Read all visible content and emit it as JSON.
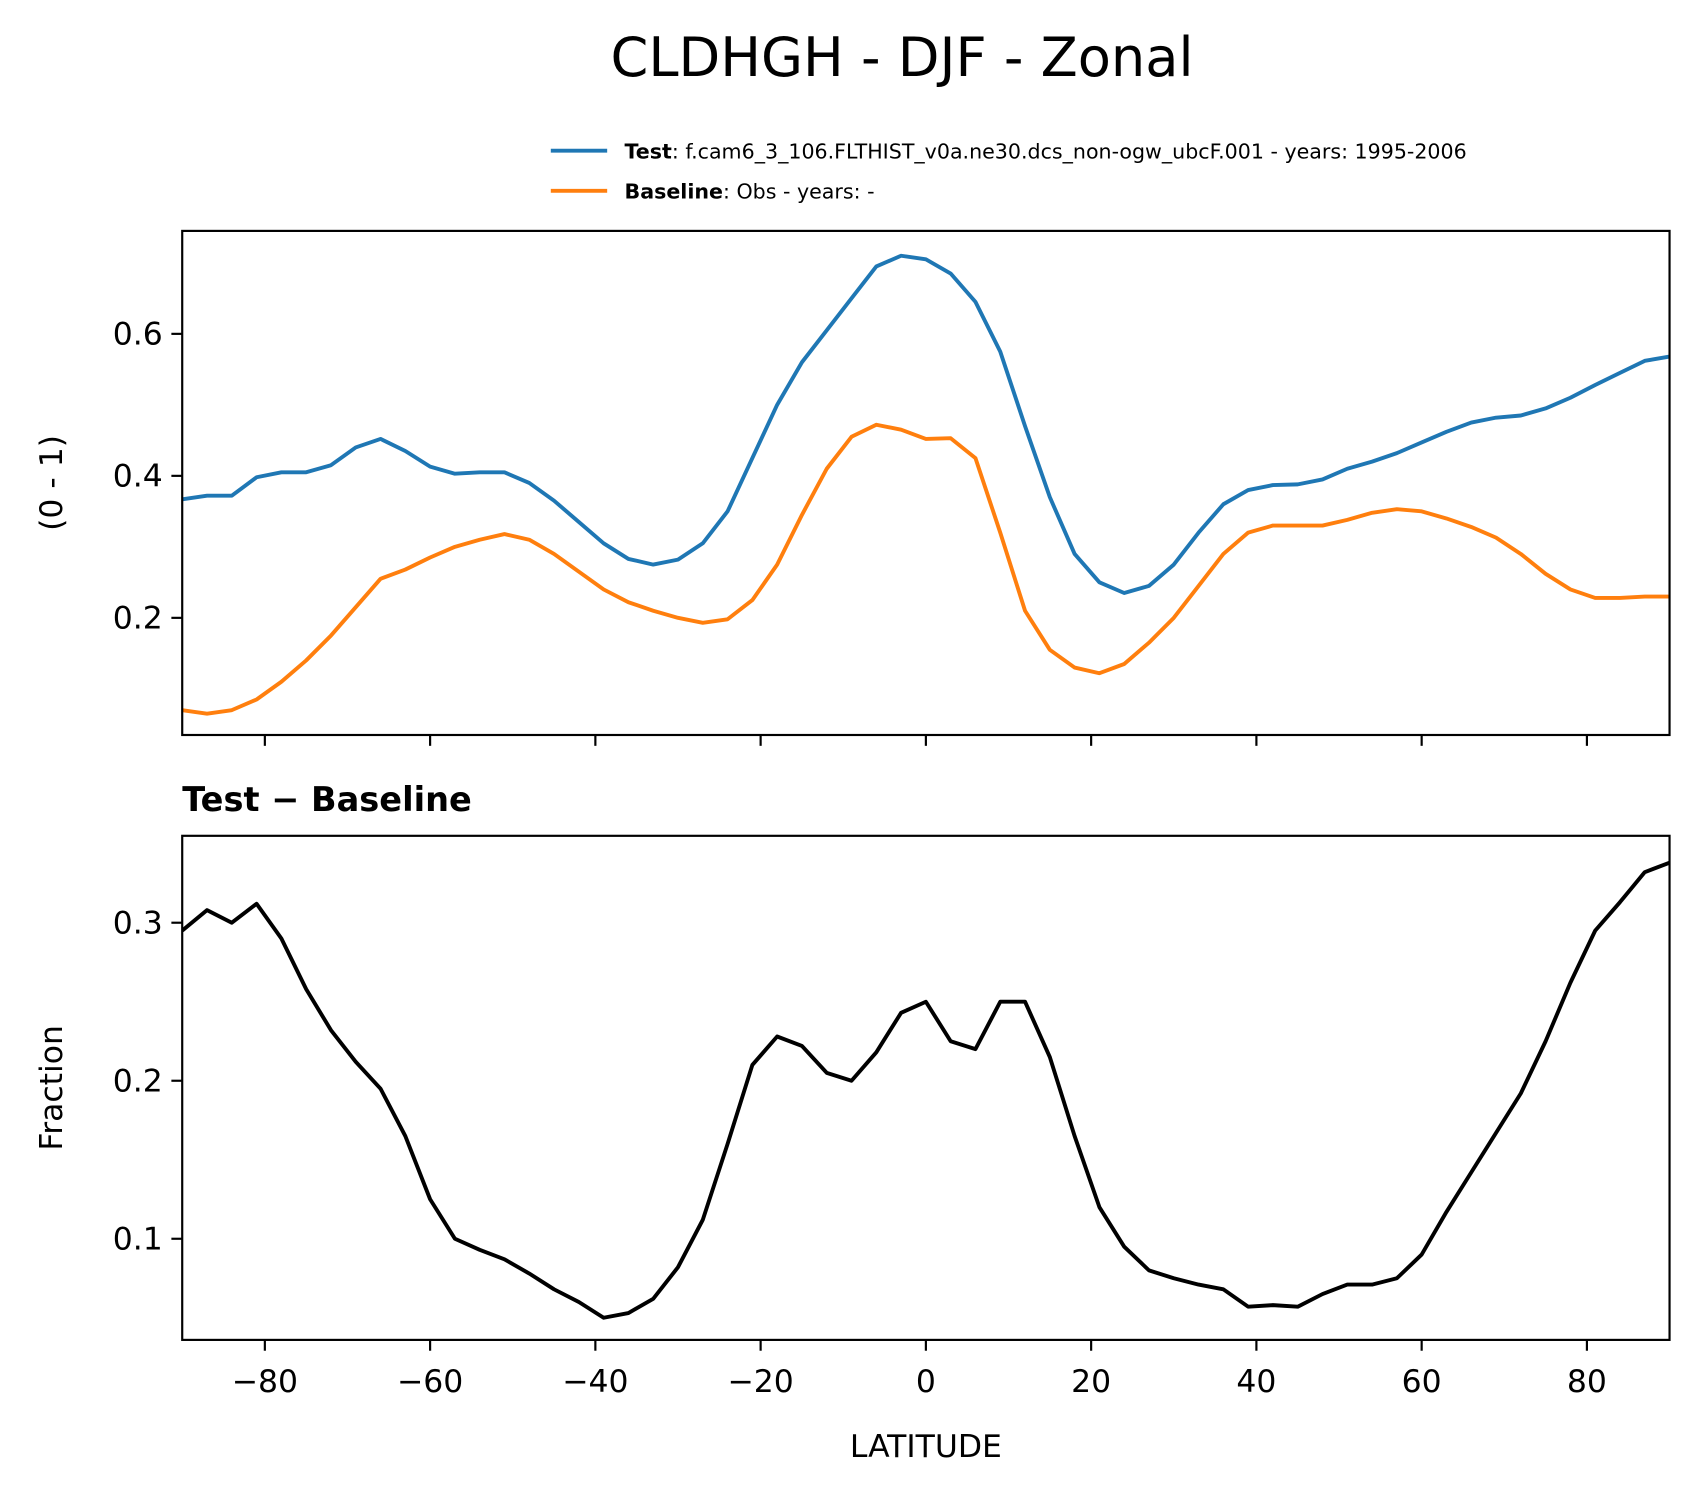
{
  "title": "CLDHGH - DJF - Zonal",
  "chart_data": [
    {
      "type": "line",
      "ylabel": "(0 - 1)",
      "x": [
        -90,
        -87,
        -84,
        -81,
        -78,
        -75,
        -72,
        -69,
        -66,
        -63,
        -60,
        -57,
        -54,
        -51,
        -48,
        -45,
        -42,
        -39,
        -36,
        -33,
        -30,
        -27,
        -24,
        -21,
        -18,
        -15,
        -12,
        -9,
        -6,
        -3,
        0,
        3,
        6,
        9,
        12,
        15,
        18,
        21,
        24,
        27,
        30,
        33,
        36,
        39,
        42,
        45,
        48,
        51,
        54,
        57,
        60,
        63,
        66,
        69,
        72,
        75,
        78,
        81,
        84,
        87,
        90
      ],
      "series": [
        {
          "name": "Test",
          "description": ": f.cam6_3_106.FLTHIST_v0a.ne30.dcs_non-ogw_ubcF.001 - years: 1995-2006",
          "color": "#1f77b4",
          "values": [
            0.367,
            0.372,
            0.372,
            0.398,
            0.405,
            0.405,
            0.415,
            0.44,
            0.452,
            0.435,
            0.413,
            0.403,
            0.405,
            0.405,
            0.39,
            0.365,
            0.335,
            0.305,
            0.283,
            0.275,
            0.282,
            0.305,
            0.35,
            0.425,
            0.5,
            0.56,
            0.605,
            0.65,
            0.695,
            0.71,
            0.705,
            0.685,
            0.645,
            0.575,
            0.47,
            0.37,
            0.29,
            0.25,
            0.235,
            0.245,
            0.275,
            0.32,
            0.36,
            0.38,
            0.387,
            0.388,
            0.395,
            0.41,
            0.42,
            0.432,
            0.447,
            0.462,
            0.475,
            0.482,
            0.485,
            0.495,
            0.51,
            0.528,
            0.545,
            0.562,
            0.568
          ]
        },
        {
          "name": "Baseline",
          "description": ": Obs - years: -",
          "color": "#ff7f0e",
          "values": [
            0.07,
            0.065,
            0.07,
            0.085,
            0.11,
            0.14,
            0.175,
            0.215,
            0.255,
            0.268,
            0.285,
            0.3,
            0.31,
            0.318,
            0.31,
            0.29,
            0.265,
            0.24,
            0.222,
            0.21,
            0.2,
            0.193,
            0.198,
            0.225,
            0.275,
            0.345,
            0.41,
            0.455,
            0.472,
            0.465,
            0.452,
            0.453,
            0.425,
            0.32,
            0.21,
            0.155,
            0.13,
            0.122,
            0.135,
            0.165,
            0.2,
            0.245,
            0.29,
            0.32,
            0.33,
            0.33,
            0.33,
            0.338,
            0.348,
            0.353,
            0.35,
            0.34,
            0.328,
            0.313,
            0.29,
            0.262,
            0.24,
            0.228,
            0.228,
            0.23,
            0.23
          ]
        }
      ],
      "xlim": [
        -90,
        90
      ],
      "xticks": [
        -80,
        -60,
        -40,
        -20,
        0,
        20,
        40,
        60,
        80
      ],
      "ylim": [
        0.035,
        0.745
      ],
      "yticks": [
        0.2,
        0.4,
        0.6
      ]
    },
    {
      "type": "line",
      "subtitle": "Test − Baseline",
      "xlabel": "LATITUDE",
      "ylabel": "Fraction",
      "x": [
        -90,
        -87,
        -84,
        -81,
        -78,
        -75,
        -72,
        -69,
        -66,
        -63,
        -60,
        -57,
        -54,
        -51,
        -48,
        -45,
        -42,
        -39,
        -36,
        -33,
        -30,
        -27,
        -24,
        -21,
        -18,
        -15,
        -12,
        -9,
        -6,
        -3,
        0,
        3,
        6,
        9,
        12,
        15,
        18,
        21,
        24,
        27,
        30,
        33,
        36,
        39,
        42,
        45,
        48,
        51,
        54,
        57,
        60,
        63,
        66,
        69,
        72,
        75,
        78,
        81,
        84,
        87,
        90
      ],
      "series": [
        {
          "color": "#000000",
          "values": [
            0.295,
            0.308,
            0.3,
            0.312,
            0.29,
            0.258,
            0.232,
            0.212,
            0.195,
            0.165,
            0.125,
            0.1,
            0.093,
            0.087,
            0.078,
            0.068,
            0.06,
            0.05,
            0.053,
            0.062,
            0.082,
            0.112,
            0.16,
            0.21,
            0.228,
            0.222,
            0.205,
            0.2,
            0.218,
            0.243,
            0.25,
            0.225,
            0.22,
            0.25,
            0.25,
            0.215,
            0.165,
            0.12,
            0.095,
            0.08,
            0.075,
            0.071,
            0.068,
            0.057,
            0.058,
            0.057,
            0.065,
            0.071,
            0.071,
            0.075,
            0.09,
            0.117,
            0.142,
            0.167,
            0.192,
            0.225,
            0.262,
            0.295,
            0.313,
            0.332,
            0.338
          ]
        }
      ],
      "xlim": [
        -90,
        90
      ],
      "xticks": [
        {
          "value": -80,
          "label": "−80"
        },
        {
          "value": -60,
          "label": "−60"
        },
        {
          "value": -40,
          "label": "−40"
        },
        {
          "value": -20,
          "label": "−20"
        },
        0,
        20,
        40,
        60,
        80
      ],
      "ylim": [
        0.036,
        0.355
      ],
      "yticks": [
        0.1,
        0.2,
        0.3
      ]
    }
  ]
}
